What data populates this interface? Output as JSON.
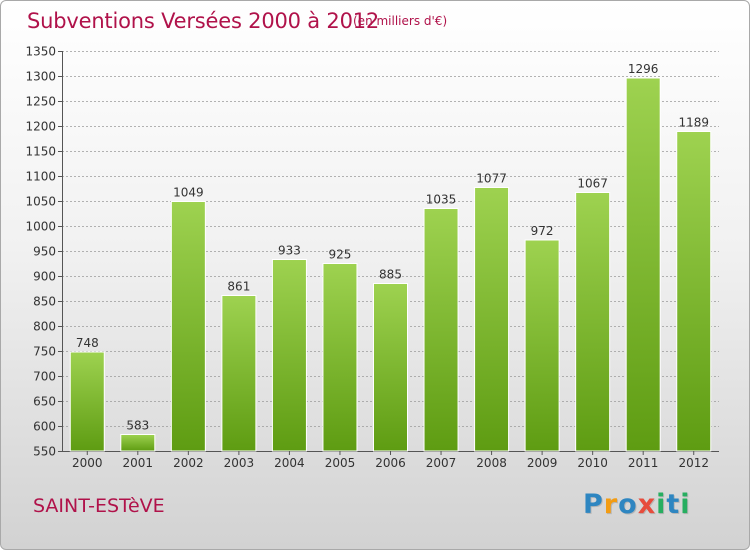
{
  "header": {
    "title": "Subventions Versées 2000 à 2012",
    "subtitle": "(en milliers d'€)"
  },
  "footer": {
    "commune": "SAINT-ESTèVE",
    "logo": "Proxiti",
    "logo_letters": [
      {
        "char": "P",
        "color": "#2e86c1"
      },
      {
        "char": "r",
        "color": "#f39c12"
      },
      {
        "char": "o",
        "color": "#2e86c1"
      },
      {
        "char": "x",
        "color": "#e74c3c"
      },
      {
        "char": "i",
        "color": "#27ae60"
      },
      {
        "char": "t",
        "color": "#2e86c1"
      },
      {
        "char": "i",
        "color": "#27ae60"
      }
    ]
  },
  "colors": {
    "title": "#b0124a",
    "bar_top": "#9ed250",
    "bar_bottom": "#5e9c12",
    "grid": "#9a9a9a"
  },
  "chart_data": {
    "type": "bar",
    "title": "Subventions Versées 2000 à 2012",
    "subtitle": "(en milliers d'€)",
    "categories": [
      "2000",
      "2001",
      "2002",
      "2003",
      "2004",
      "2005",
      "2006",
      "2007",
      "2008",
      "2009",
      "2010",
      "2011",
      "2012"
    ],
    "values": [
      748,
      583,
      1049,
      861,
      933,
      925,
      885,
      1035,
      1077,
      972,
      1067,
      1296,
      1189
    ],
    "ylim": [
      550,
      1350
    ],
    "yticks": [
      550,
      600,
      650,
      700,
      750,
      800,
      850,
      900,
      950,
      1000,
      1050,
      1100,
      1150,
      1200,
      1250,
      1300,
      1350
    ],
    "grid": true,
    "grid_style": "dashed-horizontal",
    "data_labels": true,
    "xlabel": "",
    "ylabel": ""
  }
}
